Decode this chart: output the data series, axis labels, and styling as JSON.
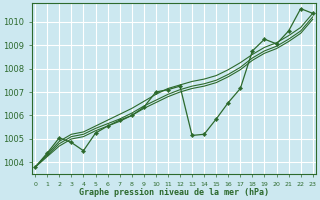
{
  "background_color": "#cce8f0",
  "grid_color": "#ffffff",
  "line_color": "#2d6a2d",
  "marker_color": "#2d6a2d",
  "xlabel": "Graphe pression niveau de la mer (hPa)",
  "ylim": [
    1003.5,
    1010.8
  ],
  "xlim": [
    -0.3,
    23.3
  ],
  "yticks": [
    1004,
    1005,
    1006,
    1007,
    1008,
    1009,
    1010
  ],
  "xticks": [
    0,
    1,
    2,
    3,
    4,
    5,
    6,
    7,
    8,
    9,
    10,
    11,
    12,
    13,
    14,
    15,
    16,
    17,
    18,
    19,
    20,
    21,
    22,
    23
  ],
  "x": [
    0,
    1,
    2,
    3,
    4,
    5,
    6,
    7,
    8,
    9,
    10,
    11,
    12,
    13,
    14,
    15,
    16,
    17,
    18,
    19,
    20,
    21,
    22,
    23
  ],
  "y_main": [
    1003.8,
    1004.4,
    1005.05,
    1004.85,
    1004.5,
    1005.25,
    1005.55,
    1005.8,
    1006.0,
    1006.35,
    1007.0,
    1007.1,
    1007.25,
    1005.15,
    1005.2,
    1005.85,
    1006.55,
    1007.15,
    1008.75,
    1009.25,
    1009.05,
    1009.6,
    1010.55,
    1010.35
  ],
  "y_trend1": [
    1003.8,
    1004.35,
    1004.9,
    1005.2,
    1005.3,
    1005.55,
    1005.8,
    1006.05,
    1006.3,
    1006.6,
    1006.9,
    1007.15,
    1007.3,
    1007.45,
    1007.55,
    1007.7,
    1007.95,
    1008.25,
    1008.6,
    1008.9,
    1009.1,
    1009.4,
    1009.75,
    1010.35
  ],
  "y_trend2": [
    1003.8,
    1004.3,
    1004.8,
    1005.1,
    1005.2,
    1005.45,
    1005.65,
    1005.85,
    1006.1,
    1006.4,
    1006.65,
    1006.9,
    1007.1,
    1007.25,
    1007.35,
    1007.5,
    1007.75,
    1008.05,
    1008.45,
    1008.75,
    1008.95,
    1009.25,
    1009.6,
    1010.2
  ],
  "y_trend3": [
    1003.8,
    1004.25,
    1004.7,
    1005.0,
    1005.1,
    1005.35,
    1005.55,
    1005.75,
    1006.0,
    1006.3,
    1006.55,
    1006.8,
    1007.0,
    1007.15,
    1007.25,
    1007.4,
    1007.65,
    1007.95,
    1008.35,
    1008.65,
    1008.85,
    1009.15,
    1009.5,
    1010.1
  ]
}
